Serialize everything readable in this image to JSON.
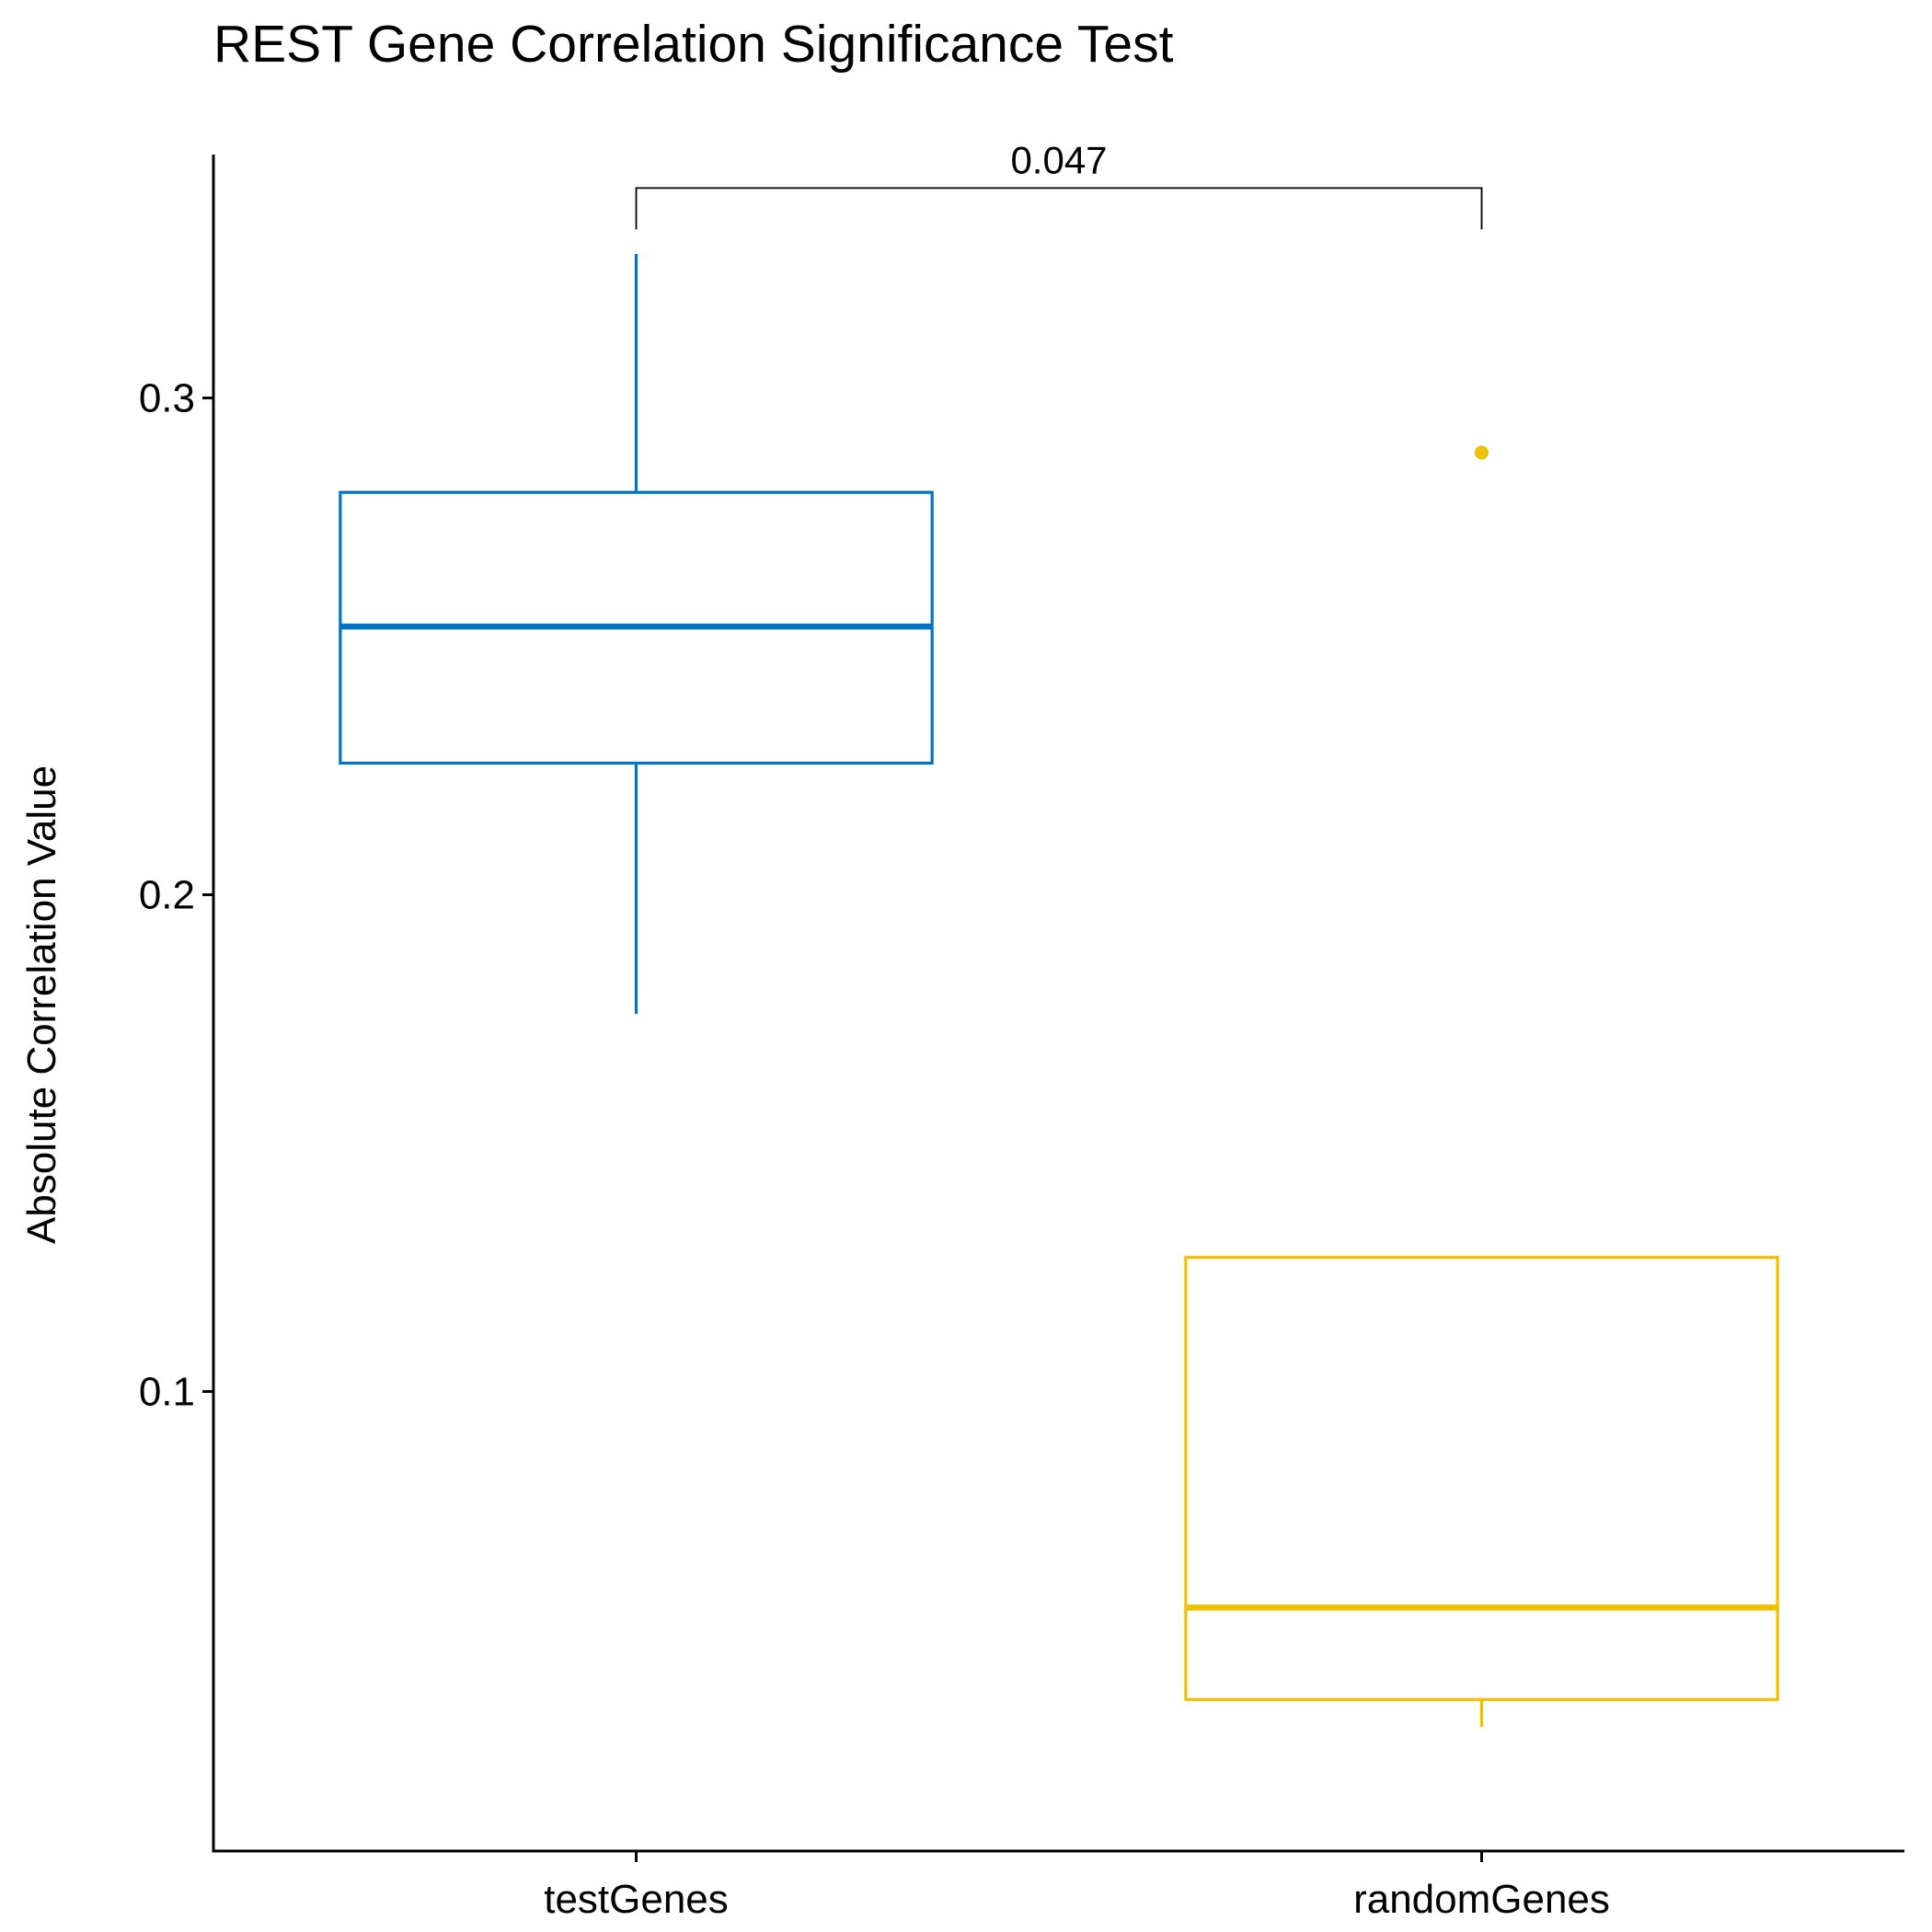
{
  "chart_data": {
    "type": "boxplot",
    "title": "REST Gene Correlation Significance Test",
    "xlabel": "",
    "ylabel": "Absolute Correlation Value",
    "ylim": [
      0.0075,
      0.349
    ],
    "yticks": [
      0.1,
      0.2,
      0.3
    ],
    "ytick_labels": [
      "0.1",
      "0.2",
      "0.3"
    ],
    "grid": false,
    "legend": "none",
    "categories": [
      "testGenes",
      "randomGenes"
    ],
    "boxes": [
      {
        "category": "testGenes",
        "color": "#0073C2",
        "whisker_low": 0.176,
        "q1": 0.2265,
        "median": 0.254,
        "q3": 0.281,
        "whisker_high": 0.329,
        "outliers": []
      },
      {
        "category": "randomGenes",
        "color": "#EFC000",
        "whisker_low": 0.0325,
        "q1": 0.038,
        "median": 0.0565,
        "q3": 0.127,
        "whisker_high": 0.127,
        "outliers": [
          0.289
        ]
      }
    ],
    "comparisons": [
      {
        "groups": [
          "testGenes",
          "randomGenes"
        ],
        "label": "0.047",
        "y": 0.343
      }
    ]
  }
}
